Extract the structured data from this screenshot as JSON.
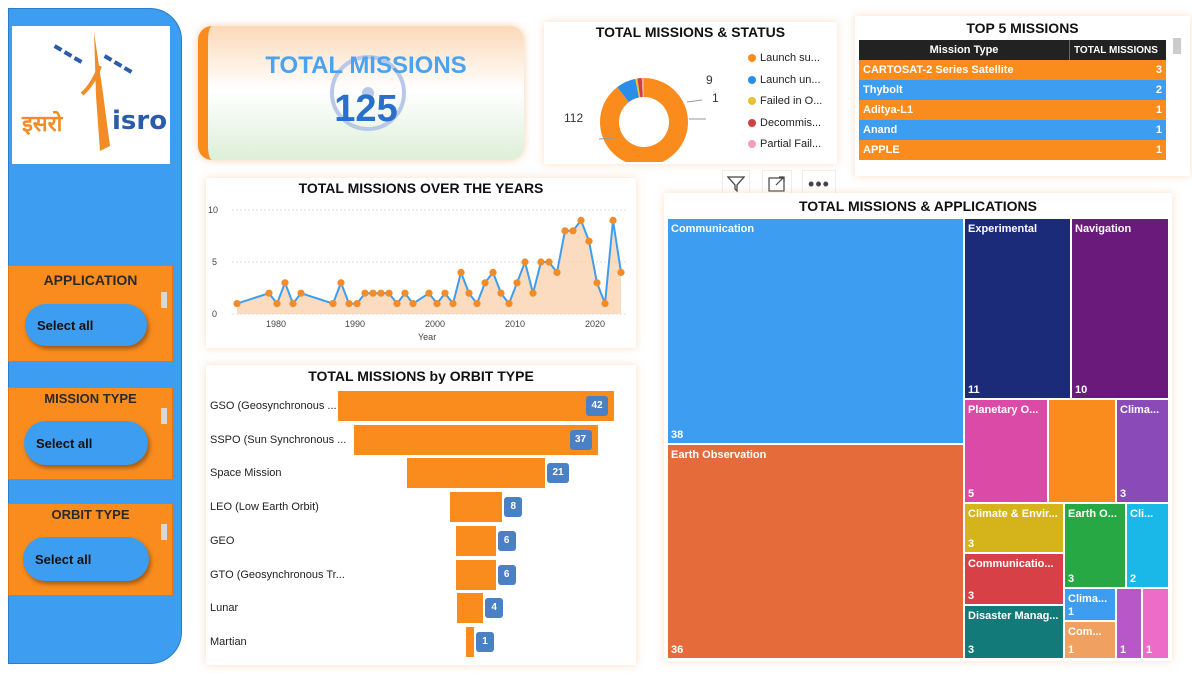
{
  "logo": {
    "text_hindi": "इसरो",
    "text_english": "isro"
  },
  "filters": [
    {
      "title": "APPLICATION",
      "value": "Select all"
    },
    {
      "title": "MISSION TYPE",
      "value": "Select all"
    },
    {
      "title": "ORBIT TYPE",
      "value": "Select all"
    }
  ],
  "kpi": {
    "title": "TOTAL MISSIONS",
    "value": "125"
  },
  "status_chart": {
    "title": "TOTAL MISSIONS & STATUS",
    "legend": [
      "Launch su...",
      "Launch un...",
      "Failed in O...",
      "Decommis...",
      "Partial Fail..."
    ],
    "labels": {
      "main": "112",
      "second": "9",
      "third": "1"
    }
  },
  "top5": {
    "title": "TOP 5 MISSIONS",
    "headers": [
      "Mission Type",
      "TOTAL MISSIONS"
    ],
    "rows": [
      {
        "name": "CARTOSAT-2 Series Satellite",
        "count": "3"
      },
      {
        "name": "Thybolt",
        "count": "2"
      },
      {
        "name": "Aditya-L1",
        "count": "1"
      },
      {
        "name": "Anand",
        "count": "1"
      },
      {
        "name": "APPLE",
        "count": "1"
      }
    ]
  },
  "years_chart": {
    "title": "TOTAL MISSIONS OVER THE YEARS",
    "xlabel": "Year",
    "yticks": [
      "10",
      "5",
      "0"
    ],
    "xticks": [
      "1980",
      "1990",
      "2000",
      "2010",
      "2020"
    ]
  },
  "orbit_chart": {
    "title": "TOTAL MISSIONS by ORBIT TYPE"
  },
  "treemap": {
    "title": "TOTAL MISSIONS & APPLICATIONS"
  },
  "colors": {
    "orange": "#fa8c1e",
    "blue": "#3d9df0",
    "dark_blue_badge": "#4a80c4"
  },
  "chart_data": [
    {
      "type": "pie",
      "title": "TOTAL MISSIONS & STATUS",
      "categories": [
        "Launch su...",
        "Launch un...",
        "Failed in O...",
        "Decommis...",
        "Partial Fail..."
      ],
      "values": [
        112,
        9,
        1,
        2,
        1
      ],
      "colors": [
        "#fa8c1e",
        "#2b8de8",
        "#e8c030",
        "#d04040",
        "#f0a0b0"
      ]
    },
    {
      "type": "area",
      "title": "TOTAL MISSIONS OVER THE YEARS",
      "xlabel": "Year",
      "ylim": [
        0,
        10
      ],
      "x": [
        1975,
        1979,
        1980,
        1981,
        1982,
        1983,
        1987,
        1988,
        1989,
        1990,
        1991,
        1992,
        1993,
        1994,
        1995,
        1996,
        1997,
        1999,
        2000,
        2001,
        2002,
        2003,
        2004,
        2005,
        2006,
        2007,
        2008,
        2009,
        2010,
        2011,
        2012,
        2013,
        2014,
        2015,
        2016,
        2017,
        2018,
        2019,
        2020,
        2021,
        2022,
        2023
      ],
      "values": [
        1,
        2,
        1,
        3,
        1,
        2,
        1,
        3,
        1,
        1,
        2,
        2,
        2,
        2,
        1,
        2,
        1,
        2,
        1,
        2,
        1,
        4,
        2,
        1,
        3,
        4,
        2,
        1,
        3,
        5,
        2,
        5,
        5,
        4,
        8,
        8,
        9,
        7,
        3,
        1,
        9,
        4
      ]
    },
    {
      "type": "bar",
      "title": "TOTAL MISSIONS by ORBIT TYPE",
      "categories": [
        "GSO (Geosynchronous ...",
        "SSPO (Sun Synchronous ...",
        "Space Mission",
        "LEO (Low Earth Orbit)",
        "GEO",
        "GTO (Geosynchronous Tr...",
        "Lunar",
        "Martian"
      ],
      "values": [
        42,
        37,
        21,
        8,
        6,
        6,
        4,
        1
      ]
    },
    {
      "type": "heatmap",
      "title": "TOTAL MISSIONS & APPLICATIONS",
      "categories": [
        "Communication",
        "Earth Observation",
        "Experimental",
        "Navigation",
        "Planetary O...",
        "",
        "Clima...",
        "Climate & Envir...",
        "Earth O...",
        "Cli...",
        "Communicatio...",
        "Clima...",
        "Disaster Manag...",
        "Com...",
        "",
        ""
      ],
      "values": [
        38,
        36,
        11,
        10,
        5,
        5,
        3,
        3,
        3,
        2,
        3,
        1,
        3,
        1,
        1,
        1
      ]
    }
  ]
}
